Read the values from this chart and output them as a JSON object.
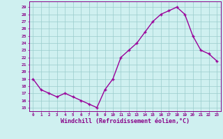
{
  "x": [
    0,
    1,
    2,
    3,
    4,
    5,
    6,
    7,
    8,
    9,
    10,
    11,
    12,
    13,
    14,
    15,
    16,
    17,
    18,
    19,
    20,
    21,
    22,
    23
  ],
  "y": [
    19,
    17.5,
    17,
    16.5,
    17,
    16.5,
    16,
    15.5,
    15,
    17.5,
    19,
    22,
    23,
    24,
    25.5,
    27,
    28,
    28.5,
    29,
    28,
    25,
    23,
    22.5,
    21.5
  ],
  "line_color": "#990099",
  "marker": "+",
  "marker_size": 3.5,
  "linewidth": 1.0,
  "xlabel": "Windchill (Refroidissement éolien,°C)",
  "xlabel_fontsize": 6.0,
  "xtick_labels": [
    "0",
    "1",
    "2",
    "3",
    "4",
    "5",
    "6",
    "7",
    "8",
    "9",
    "10",
    "11",
    "12",
    "13",
    "14",
    "15",
    "16",
    "17",
    "18",
    "19",
    "20",
    "21",
    "22",
    "23"
  ],
  "ytick_labels": [
    "15",
    "16",
    "17",
    "18",
    "19",
    "20",
    "21",
    "22",
    "23",
    "24",
    "25",
    "26",
    "27",
    "28",
    "29"
  ],
  "ylim": [
    14.5,
    29.8
  ],
  "xlim": [
    -0.5,
    23.5
  ],
  "bg_color": "#cff0f0",
  "grid_color": "#99cccc",
  "tick_color": "#880088",
  "label_color": "#880088",
  "spine_color": "#880088"
}
